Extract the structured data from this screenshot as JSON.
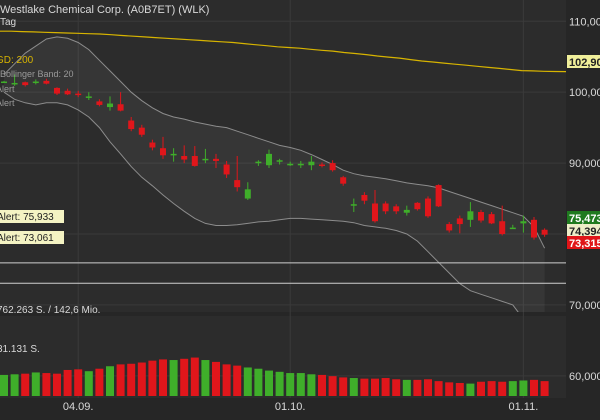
{
  "header": {
    "title": "Westlake Chemical Corp. (A0B7ET) (WLK)",
    "interval": "Tag"
  },
  "legend": {
    "sma": "GD: 200",
    "bollinger": "Bollinger Band: 20",
    "upper": "Alert",
    "lower": "Alert"
  },
  "alerts": {
    "upper_label": "Alert: 75,933",
    "lower_label": "Alert: 73,061"
  },
  "volume_labels": {
    "top": "762.263 S. / 142,6 Mio.",
    "mid": "31.131 S."
  },
  "colors": {
    "up": "#3fae2a",
    "down": "#e0161b",
    "sma": "#d7b400",
    "band": "#8c8c8c",
    "background": "#262626"
  },
  "chart_data": {
    "type": "candlestick",
    "title": "Westlake Chemical Corp. (A0B7ET) (WLK)",
    "ylim": [
      58,
      113
    ],
    "y_ticks": [
      {
        "value": 110,
        "label": "110,000"
      },
      {
        "value": 100,
        "label": "100,000"
      },
      {
        "value": 90,
        "label": "90,000"
      },
      {
        "value": 80,
        "label": "80,000"
      },
      {
        "value": 70,
        "label": "70,000"
      },
      {
        "value": 60,
        "label": "60,000"
      }
    ],
    "x_ticks": [
      "04.09.",
      "01.10.",
      "01.11."
    ],
    "x_tick_index": [
      7,
      27,
      49
    ],
    "price_tags": [
      {
        "label": "102,90",
        "value": 102.9,
        "color": "yellow"
      },
      {
        "label": "75,473",
        "value": 75.47,
        "color": "green"
      },
      {
        "label": "74,394",
        "value": 74.39,
        "color": "light"
      },
      {
        "label": "73,315",
        "value": 73.31,
        "color": "red"
      }
    ],
    "alert_lines": [
      75.933,
      73.061
    ],
    "sma200": [
      108.6,
      108.6,
      108.55,
      108.5,
      108.45,
      108.4,
      108.35,
      108.3,
      108.25,
      108.2,
      108.1,
      108.0,
      107.9,
      107.8,
      107.7,
      107.6,
      107.5,
      107.4,
      107.3,
      107.2,
      107.1,
      107.0,
      106.85,
      106.7,
      106.55,
      106.4,
      106.3,
      106.2,
      106.05,
      105.9,
      105.8,
      105.6,
      105.45,
      105.3,
      105.1,
      104.95,
      104.8,
      104.6,
      104.4,
      104.25,
      104.1,
      103.95,
      103.8,
      103.65,
      103.5,
      103.35,
      103.2,
      103.05,
      103.0,
      102.95,
      102.92,
      102.9
    ],
    "bollinger_upper": [
      102.5,
      104,
      105.5,
      106.5,
      107.5,
      107.8,
      107.6,
      107,
      106,
      104.5,
      103,
      101.5,
      100,
      98.8,
      97.8,
      97,
      96.5,
      96.2,
      95.8,
      95.5,
      95.2,
      95,
      94.5,
      94,
      93.5,
      93,
      92.5,
      92.2,
      91.8,
      91.2,
      90.5,
      89.8,
      89,
      88.5,
      88.2,
      88,
      87.8,
      87.5,
      87.2,
      87,
      86.8,
      86.5,
      86,
      85.5,
      85,
      84.5,
      84,
      83.5,
      83,
      82.5,
      81,
      78
    ],
    "bollinger_lower": [
      100,
      99,
      98.5,
      98.2,
      98.5,
      98.5,
      98.2,
      97.5,
      96.5,
      95,
      93,
      91.3,
      89.5,
      88,
      86.8,
      85.5,
      84.3,
      83.2,
      82.2,
      81.5,
      81.2,
      81.2,
      81.3,
      81.5,
      81.7,
      81.8,
      82,
      82.2,
      82.2,
      82.1,
      82,
      81.9,
      81.8,
      81.6,
      81.2,
      81,
      80.8,
      80.5,
      80,
      79,
      77.5,
      76,
      74.5,
      73,
      72,
      71.5,
      71,
      70.5,
      70,
      68,
      67.4,
      67.5
    ],
    "ohlc": [
      [
        101.5,
        101.6,
        101.3,
        101.5
      ],
      [
        101.2,
        102.5,
        100.9,
        101.3
      ],
      [
        101.4,
        101.5,
        100.8,
        101.0
      ],
      [
        101.4,
        101.8,
        101.1,
        101.5
      ],
      [
        101.6,
        101.9,
        101.1,
        101.2
      ],
      [
        100.6,
        100.7,
        99.6,
        99.8
      ],
      [
        100.2,
        100.5,
        99.6,
        99.7
      ],
      [
        99.8,
        100.2,
        99.3,
        99.6
      ],
      [
        99.3,
        100.0,
        98.9,
        99.4
      ],
      [
        98.7,
        99.0,
        98.0,
        98.2
      ],
      [
        97.9,
        99.4,
        97.4,
        98.4
      ],
      [
        98.3,
        100.0,
        97.3,
        97.4
      ],
      [
        96.0,
        96.5,
        94.5,
        94.8
      ],
      [
        95.0,
        95.4,
        93.7,
        94.0
      ],
      [
        92.9,
        93.3,
        91.8,
        92.2
      ],
      [
        92.1,
        93.7,
        90.6,
        91.1
      ],
      [
        91.1,
        92.1,
        90.2,
        91.3
      ],
      [
        91.0,
        92.5,
        90.0,
        90.5
      ],
      [
        91.0,
        92.4,
        89.5,
        89.6
      ],
      [
        90.5,
        92.0,
        90.0,
        90.6
      ],
      [
        90.6,
        91.3,
        89.3,
        90.3
      ],
      [
        89.8,
        90.3,
        87.9,
        88.4
      ],
      [
        87.6,
        91.0,
        86.0,
        86.6
      ],
      [
        85.0,
        87.3,
        84.8,
        86.3
      ],
      [
        90.0,
        90.4,
        89.6,
        90.2
      ],
      [
        89.7,
        91.9,
        89.3,
        91.3
      ],
      [
        90.2,
        90.6,
        89.8,
        90.4
      ],
      [
        89.8,
        90.2,
        89.6,
        89.9
      ],
      [
        89.7,
        90.3,
        89.3,
        89.9
      ],
      [
        89.7,
        91.0,
        89.0,
        90.2
      ],
      [
        89.8,
        90.1,
        89.4,
        89.7
      ],
      [
        90.0,
        90.4,
        88.8,
        89.0
      ],
      [
        88.0,
        88.2,
        86.8,
        87.1
      ],
      [
        84.0,
        85.0,
        83.1,
        84.2
      ],
      [
        85.5,
        85.9,
        84.2,
        84.7
      ],
      [
        84.3,
        86.2,
        81.6,
        81.8
      ],
      [
        84.3,
        84.6,
        82.8,
        83.2
      ],
      [
        83.9,
        84.2,
        82.8,
        83.2
      ],
      [
        83.0,
        84.0,
        82.6,
        83.4
      ],
      [
        84.4,
        84.5,
        83.3,
        83.5
      ],
      [
        85.0,
        85.3,
        82.3,
        82.5
      ],
      [
        86.9,
        87.0,
        83.8,
        83.9
      ],
      [
        81.4,
        81.7,
        80.2,
        80.5
      ],
      [
        82.2,
        82.6,
        80.1,
        81.4
      ],
      [
        82.0,
        84.5,
        81.0,
        83.2
      ],
      [
        83.1,
        83.4,
        81.6,
        81.9
      ],
      [
        82.8,
        83.1,
        81.4,
        81.5
      ],
      [
        81.8,
        84.0,
        79.8,
        80.0
      ],
      [
        80.9,
        81.3,
        80.8,
        80.9
      ],
      [
        81.5,
        82.6,
        80.2,
        81.8
      ],
      [
        82.0,
        82.4,
        79.2,
        79.5
      ],
      [
        80.6,
        80.8,
        79.6,
        79.9
      ]
    ],
    "volume": [
      34,
      35,
      36,
      38,
      37,
      36,
      42,
      43,
      40,
      44,
      48,
      51,
      52,
      54,
      57,
      59,
      58,
      60,
      62,
      58,
      55,
      51,
      49,
      46,
      44,
      41,
      39,
      37,
      37,
      35,
      34,
      32,
      30,
      29,
      28,
      28,
      29,
      27,
      26,
      26,
      27,
      24,
      22,
      21,
      20,
      23,
      24,
      23,
      24,
      25,
      26,
      24
    ]
  }
}
